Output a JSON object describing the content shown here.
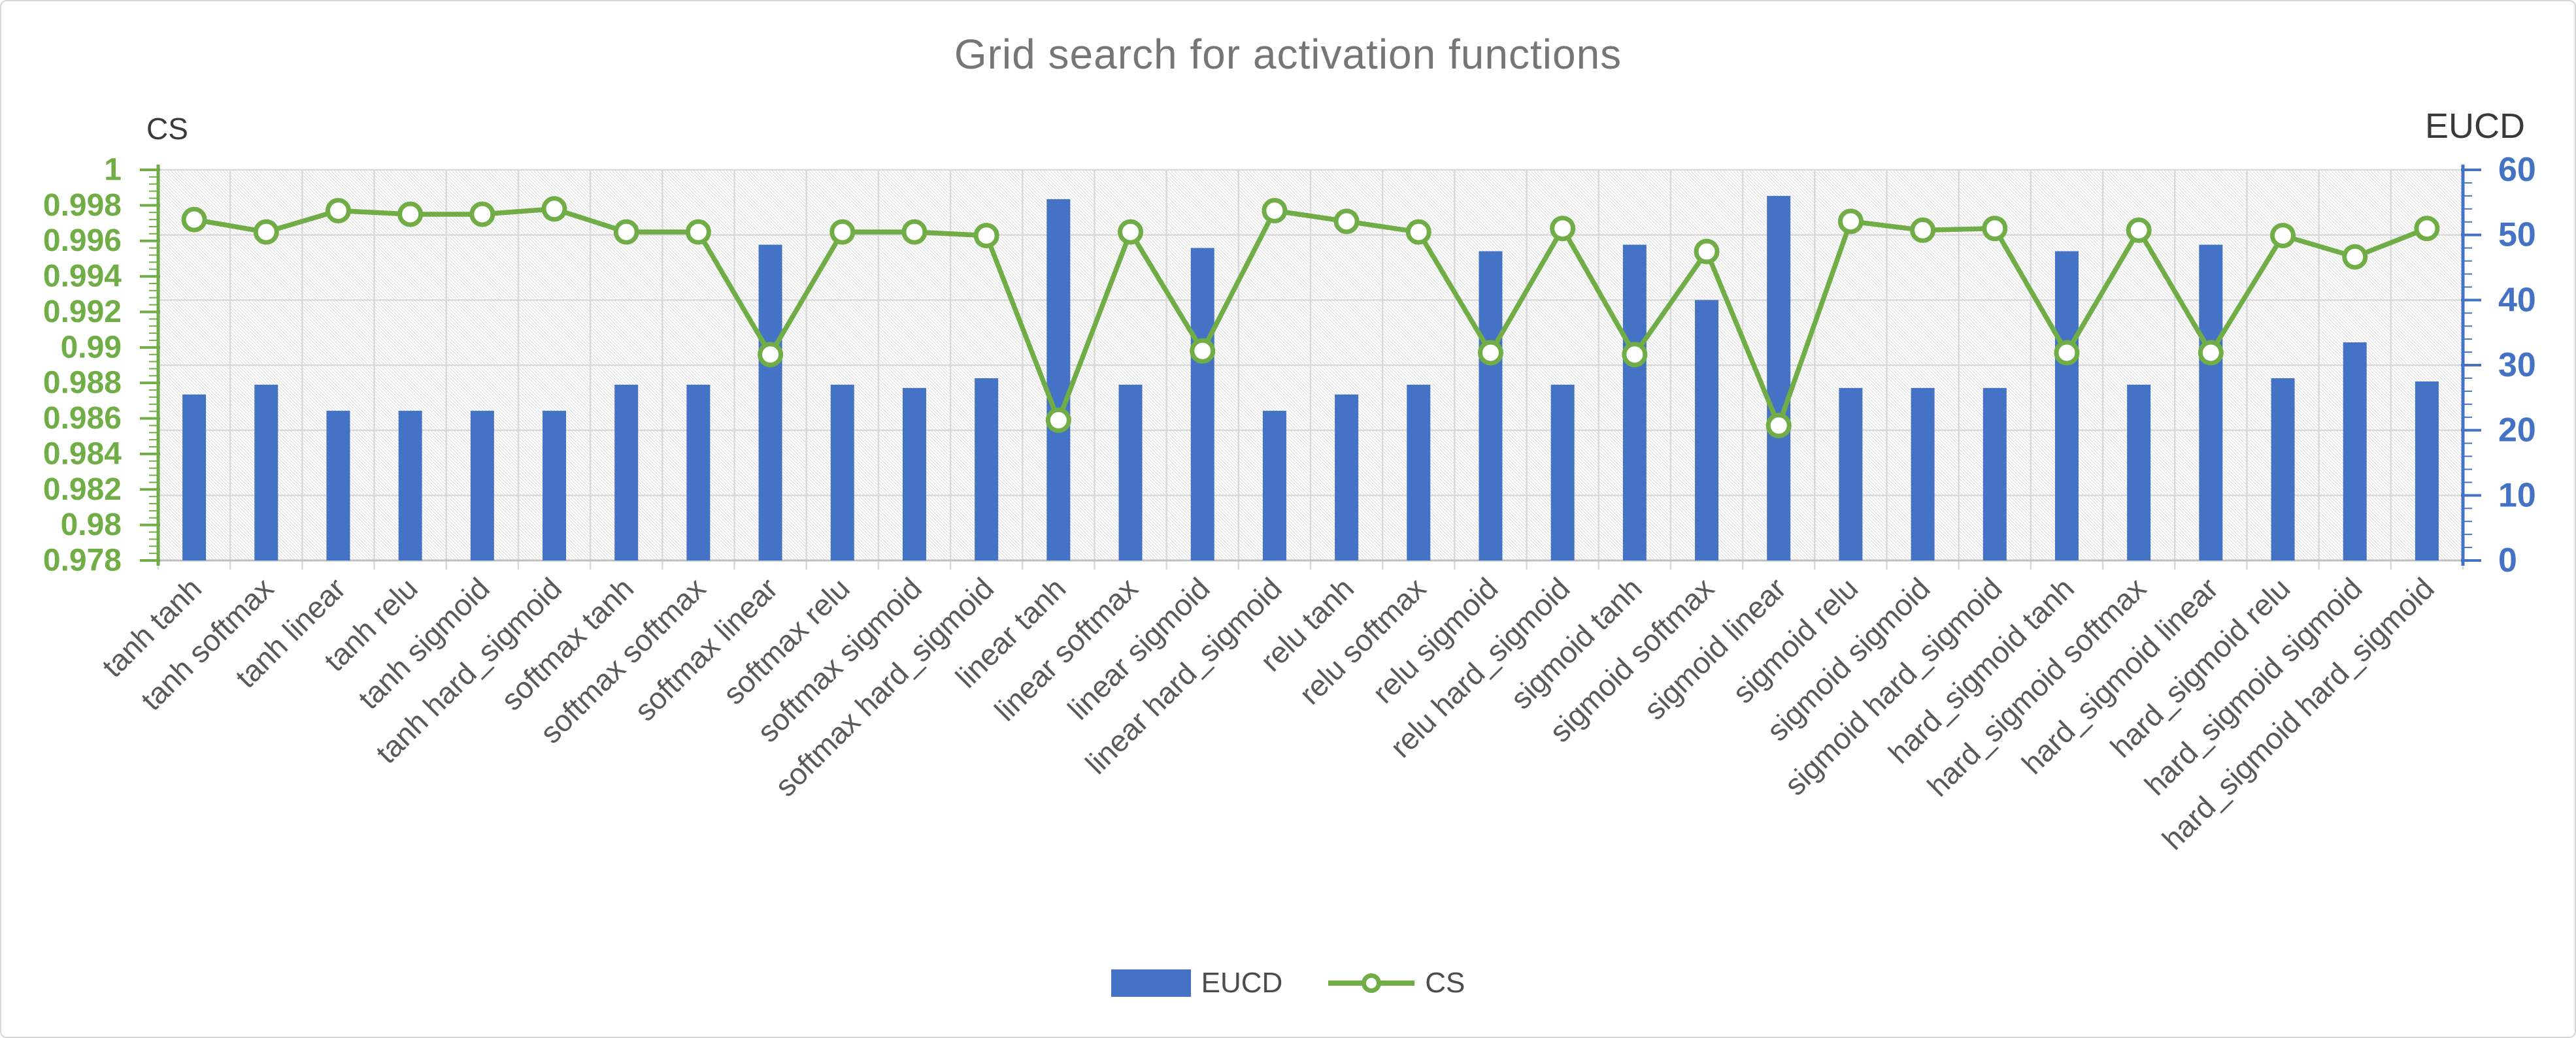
{
  "title": "Grid search for activation functions",
  "colors": {
    "bar": "#4472C4",
    "line": "#70AD47",
    "title_text": "#767676",
    "x_labels": "#595959",
    "gridline": "#d9d9d9",
    "bottom_axis": "#c0c0c0",
    "hatch": "#d2d2d2",
    "legend_text": "#4c4c4c",
    "corner_labels": "#3a3a3a"
  },
  "chart_data": {
    "type": "combo-bar-line",
    "title": "Grid search for activation functions",
    "categories": [
      "tanh tanh",
      "tanh softmax",
      "tanh linear",
      "tanh relu",
      "tanh sigmoid",
      "tanh hard_sigmoid",
      "softmax tanh",
      "softmax softmax",
      "softmax linear",
      "softmax relu",
      "softmax sigmoid",
      "softmax hard_sigmoid",
      "linear tanh",
      "linear softmax",
      "linear sigmoid",
      "linear hard_sigmoid",
      "relu tanh",
      "relu softmax",
      "relu sigmoid",
      "relu hard_sigmoid",
      "sigmoid tanh",
      "sigmoid softmax",
      "sigmoid linear",
      "sigmoid relu",
      "sigmoid sigmoid",
      "sigmoid hard_sigmoid",
      "hard_sigmoid tanh",
      "hard_sigmoid softmax",
      "hard_sigmoid linear",
      "hard_sigmoid relu",
      "hard_sigmoid sigmoid",
      "hard_sigmoid hard_sigmoid"
    ],
    "series": [
      {
        "name": "EUCD",
        "type": "bar",
        "axis": "right",
        "color": "#4472C4",
        "values": [
          25.5,
          27,
          23,
          23,
          23,
          23,
          27,
          27,
          48.5,
          27,
          26.5,
          28,
          55.5,
          27,
          48,
          23,
          25.5,
          27,
          47.5,
          27,
          48.5,
          40,
          56,
          26.5,
          26.5,
          26.5,
          47.5,
          27,
          48.5,
          28,
          33.5,
          27.5
        ]
      },
      {
        "name": "CS",
        "type": "line",
        "axis": "left",
        "marker": "circle",
        "color": "#70AD47",
        "values": [
          0.9972,
          0.9965,
          0.9977,
          0.9975,
          0.9975,
          0.9978,
          0.9965,
          0.9965,
          0.9896,
          0.9965,
          0.9965,
          0.9963,
          0.9859,
          0.9965,
          0.9898,
          0.9977,
          0.9971,
          0.9965,
          0.9897,
          0.9967,
          0.9896,
          0.9954,
          0.9856,
          0.9971,
          0.9966,
          0.9967,
          0.9897,
          0.9966,
          0.9897,
          0.9963,
          0.9951,
          0.9967
        ]
      }
    ],
    "left_axis": {
      "title": "CS",
      "min": 0.978,
      "max": 1,
      "step": 0.002,
      "color": "#70AD47",
      "tick_labels": [
        "1",
        "0.998",
        "0.996",
        "0.994",
        "0.992",
        "0.99",
        "0.988",
        "0.986",
        "0.984",
        "0.982",
        "0.98",
        "0.978"
      ]
    },
    "right_axis": {
      "title": "EUCD",
      "min": 0,
      "max": 60,
      "step": 10,
      "color": "#4472C4",
      "tick_labels": [
        "60",
        "50",
        "40",
        "30",
        "20",
        "10",
        "0"
      ]
    },
    "grid": true,
    "plot_background": "diagonal-hatch",
    "legend_position": "bottom",
    "x_label_rotation_deg": 45
  },
  "legend": {
    "items": [
      {
        "label": "EUCD",
        "marker": "bar",
        "color": "#4472C4"
      },
      {
        "label": "CS",
        "marker": "line-circle",
        "color": "#70AD47"
      }
    ]
  }
}
